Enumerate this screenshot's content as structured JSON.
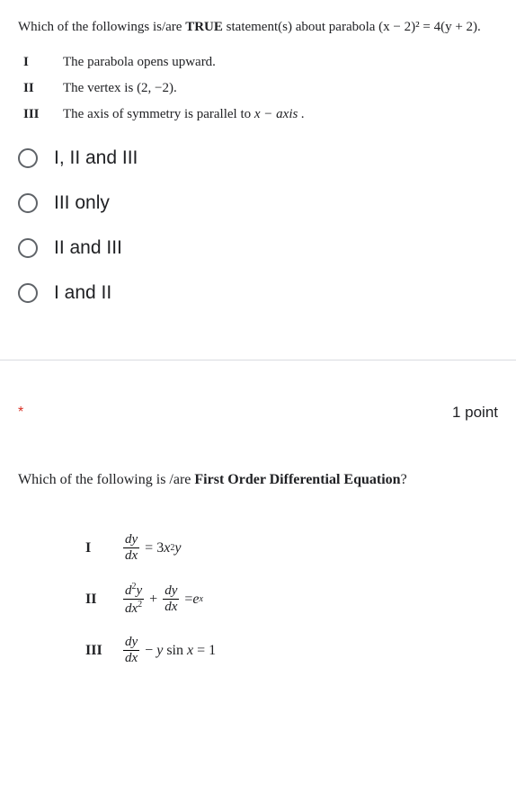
{
  "q1": {
    "question_prefix": "Which of the followings is/are ",
    "question_bold": "TRUE",
    "question_suffix": " statement(s) about parabola (x − 2)² = 4(y + 2).",
    "statements": [
      {
        "numeral": "I",
        "text": "The parabola opens upward."
      },
      {
        "numeral": "II",
        "text_prefix": "The vertex is  ",
        "text_value": "(2, −2)."
      },
      {
        "numeral": "III",
        "text_prefix": "The axis of symmetry is parallel to ",
        "text_value": "x − axis ."
      }
    ],
    "options": [
      "I, II and III",
      "III only",
      "II and III",
      "I and II"
    ]
  },
  "q2": {
    "required_mark": "*",
    "points_label": "1 point",
    "question_prefix": "Which of the following is /are ",
    "question_bold": "First Order Differential Equation",
    "question_suffix": "?",
    "equations": [
      {
        "numeral": "I"
      },
      {
        "numeral": "II"
      },
      {
        "numeral": "III"
      }
    ]
  },
  "styling": {
    "radio_border_color": "#5f6368",
    "divider_color": "#dadce0",
    "asterisk_color": "#d93025",
    "text_color": "#202124",
    "option_font_size": 21,
    "question_font_size": 15,
    "background_color": "#ffffff"
  }
}
